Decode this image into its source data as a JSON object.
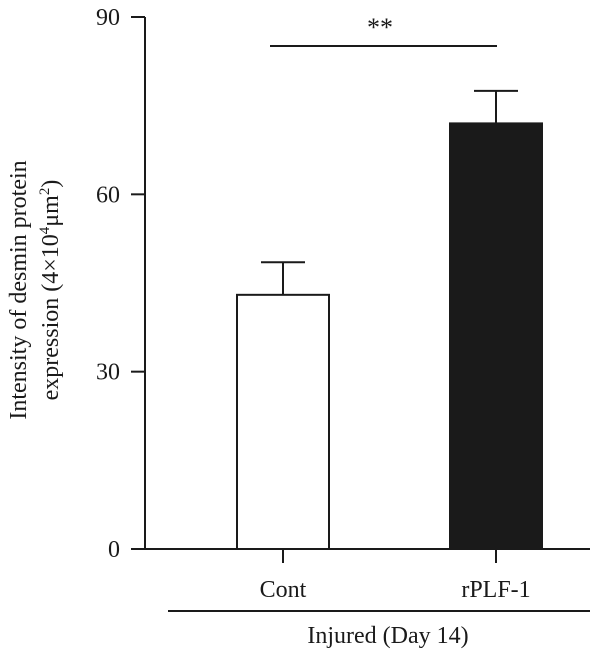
{
  "chart_data": {
    "type": "bar",
    "title": "",
    "categories": [
      "Cont",
      "rPLF-1"
    ],
    "values": [
      43,
      72
    ],
    "errors": [
      5.5,
      5.5
    ],
    "bar_colors": [
      "#ffffff",
      "#1a1a1a"
    ],
    "ylim": [
      0,
      90
    ],
    "yticks": [
      "0",
      "30",
      "60",
      "90"
    ],
    "ylabel_line1": "Intensity of desmin protein",
    "ylabel_line2_main": "expression (4×10",
    "ylabel_line2_sup1": "4",
    "ylabel_line2_mid": "μm",
    "ylabel_line2_sup2": "2",
    "ylabel_line2_end": ")",
    "group_label": "Injured (Day 14)",
    "significance": "**",
    "grid": false,
    "legend": "none"
  }
}
